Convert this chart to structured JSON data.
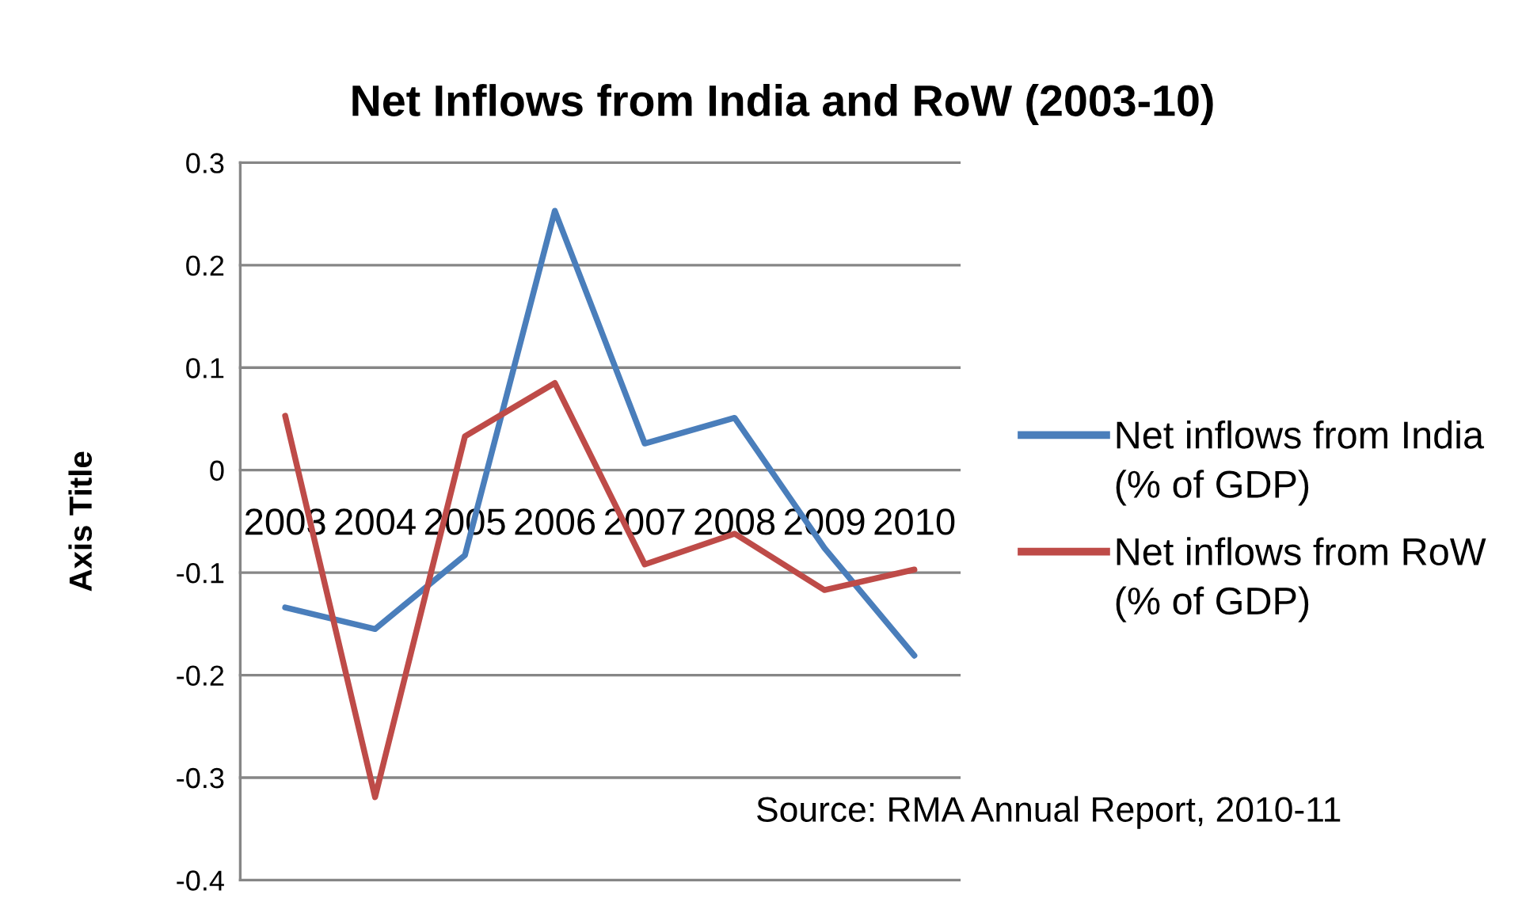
{
  "chart_data": {
    "type": "line",
    "title": "Net Inflows from India and RoW (2003-10)",
    "ylabel": "Axis Title",
    "categories": [
      "2003",
      "2004",
      "2005",
      "2006",
      "2007",
      "2008",
      "2009",
      "2010"
    ],
    "series": [
      {
        "name": "Net inflows from India\n(% of GDP)",
        "color": "#4a7ebb",
        "values": [
          -0.134,
          -0.155,
          -0.083,
          0.253,
          0.026,
          0.051,
          -0.076,
          -0.181
        ]
      },
      {
        "name": "Net inflows from RoW\n(% of GDP)",
        "color": "#be4b48",
        "values": [
          0.053,
          -0.319,
          0.033,
          0.085,
          -0.092,
          -0.062,
          -0.117,
          -0.097
        ]
      }
    ],
    "ylim": [
      -0.4,
      0.3
    ],
    "yticks": [
      -0.4,
      -0.3,
      -0.2,
      -0.1,
      0,
      0.1,
      0.2,
      0.3
    ],
    "grid": "y",
    "legend": "right",
    "annotations": [
      "Source: RMA Annual Report, 2010-11"
    ]
  }
}
